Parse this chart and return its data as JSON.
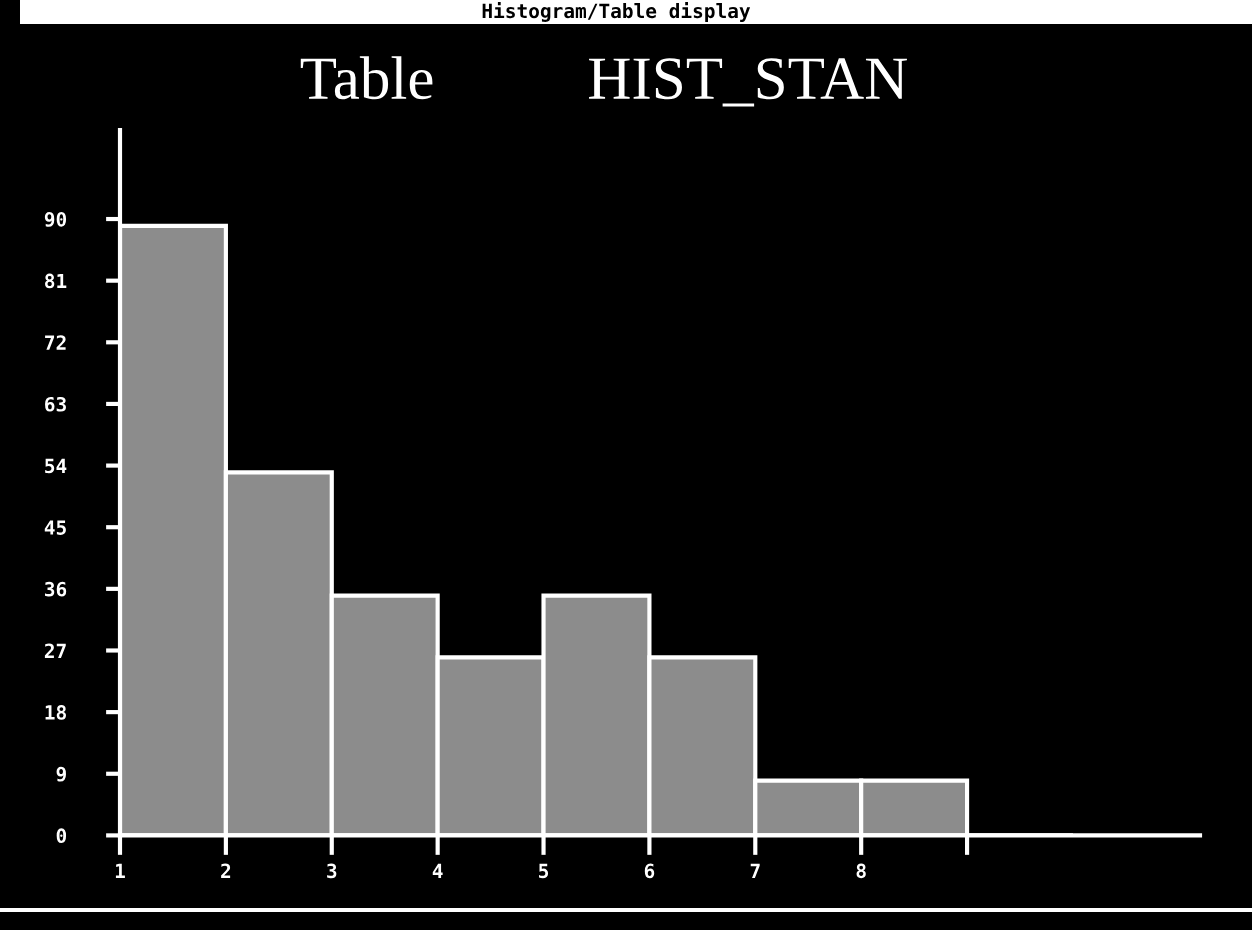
{
  "chart_data": {
    "type": "histogram",
    "title": "Table          HIST_STAN",
    "annotations": [
      "Histogram/Table display"
    ],
    "bins": [
      1,
      2,
      3,
      4,
      5,
      6,
      7,
      8,
      9,
      10
    ],
    "values": [
      89,
      53,
      35,
      26,
      35,
      26,
      8,
      8,
      0
    ],
    "color": "#8c8c8c",
    "xlim": [
      1,
      11.2
    ],
    "xticks": [
      1,
      2,
      3,
      4,
      5,
      6,
      7,
      8,
      {
        "value": 9,
        "label": null
      }
    ],
    "ylim": [
      0,
      103
    ],
    "yticks": [
      0,
      9,
      18,
      27,
      36,
      45,
      54,
      63,
      72,
      81,
      90
    ]
  }
}
